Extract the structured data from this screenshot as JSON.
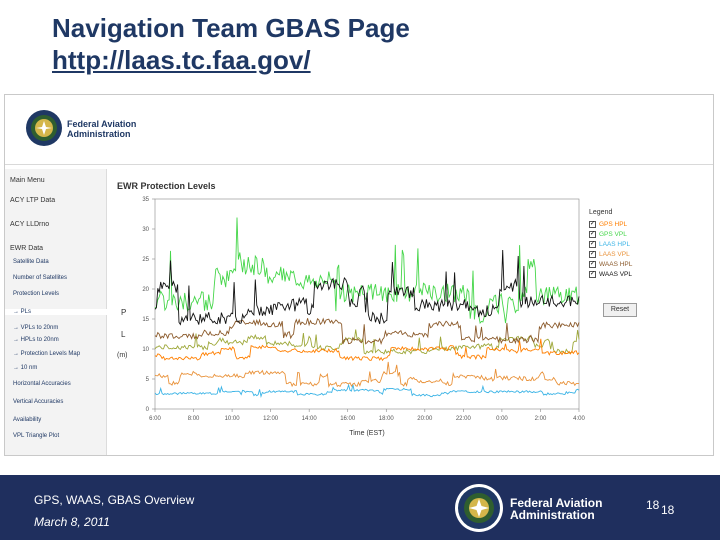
{
  "slide": {
    "title": "Navigation Team GBAS Page",
    "url": "http://laas.tc.faa.gov/"
  },
  "site": {
    "agency_line1": "Federal Aviation",
    "agency_line2": "Administration",
    "sidebar": [
      {
        "label": "Main Menu",
        "sub": false
      },
      {
        "label": "ACY LTP Data",
        "sub": false
      },
      {
        "label": "ACY LLDrno",
        "sub": false
      },
      {
        "label": "EWR Data",
        "sub": false
      },
      {
        "label": "Satellite Data",
        "sub": true
      },
      {
        "label": "Number of Satellites",
        "sub": true
      },
      {
        "label": "Protection Levels",
        "sub": true
      },
      {
        "label": "→ PLs",
        "sub": true,
        "selected": true
      },
      {
        "label": "→ VPLs to 20nm",
        "sub": true
      },
      {
        "label": "→ HPLs to 20nm",
        "sub": true
      },
      {
        "label": "→ Protection Levels Map",
        "sub": true
      },
      {
        "label": "→ 10 nm",
        "sub": true
      },
      {
        "label": "Horizontal Accuracies",
        "sub": true
      },
      {
        "label": "Vertical Accuracies",
        "sub": true
      },
      {
        "label": "Availability",
        "sub": true
      },
      {
        "label": "VPL Triangle Plot",
        "sub": true
      }
    ]
  },
  "chart_data": {
    "type": "line",
    "title": "EWR Protection Levels",
    "xlabel": "Time (EST)",
    "ylabel": "(m)",
    "ylabel_parts": [
      "P",
      "L"
    ],
    "ylim": [
      0,
      35
    ],
    "yticks": [
      "0",
      "5",
      "10",
      "15",
      "20",
      "25",
      "30",
      "35"
    ],
    "xticks": [
      "6:00",
      "8:00",
      "10:00",
      "12:00",
      "14:00",
      "16:00",
      "18:00",
      "20:00",
      "22:00",
      "0:00",
      "2:00",
      "4:00"
    ],
    "xlim": [
      6,
      28
    ],
    "series": [
      {
        "name": "GPS HPL",
        "color": "#ff7f00",
        "base": 9.0,
        "amp": 1.3,
        "seed": 1
      },
      {
        "name": "GPS VPL",
        "color": "#46d64a",
        "base": 18.0,
        "amp": 6.5,
        "seed": 2
      },
      {
        "name": "LAAS HPL",
        "color": "#3cb4e6",
        "base": 2.5,
        "amp": 0.7,
        "seed": 3
      },
      {
        "name": "LAAS VPL",
        "color": "#e9923a",
        "base": 4.6,
        "amp": 1.4,
        "seed": 4
      },
      {
        "name": "WAAS HPL",
        "color": "#8b5a2b",
        "base": 12.2,
        "amp": 2.2,
        "seed": 5
      },
      {
        "name": "WAAS VPL",
        "color": "#111111",
        "base": 17.0,
        "amp": 4.2,
        "seed": 6
      }
    ],
    "series_extra": {
      "name": "",
      "color": "#9ea83a",
      "base": 10.3,
      "amp": 1.6,
      "seed": 7
    },
    "legend_title": "Legend",
    "legend_position": "right"
  },
  "controls": {
    "reset_label": "Reset"
  },
  "footer": {
    "title": "GPS, WAAS, GBAS Overview",
    "date": "March 8, 2011",
    "agency_line1": "Federal Aviation",
    "agency_line2": "Administration",
    "page_number": "18",
    "page_number_sub": "18"
  },
  "colors": {
    "navy": "#1f2f5e",
    "title_blue": "#1f3864"
  }
}
